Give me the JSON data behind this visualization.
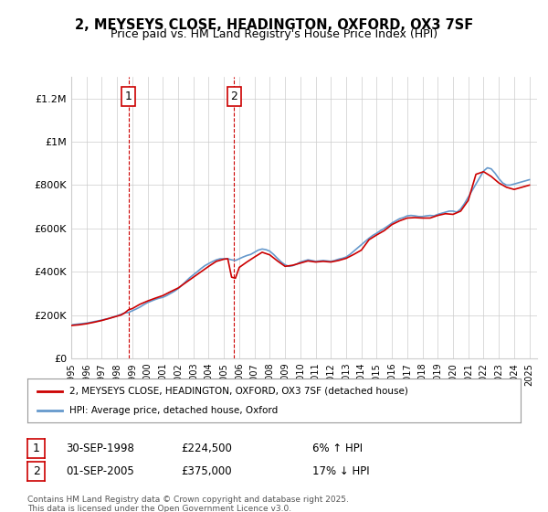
{
  "title_line1": "2, MEYSEYS CLOSE, HEADINGTON, OXFORD, OX3 7SF",
  "title_line2": "Price paid vs. HM Land Registry's House Price Index (HPI)",
  "legend_red": "2, MEYSEYS CLOSE, HEADINGTON, OXFORD, OX3 7SF (detached house)",
  "legend_blue": "HPI: Average price, detached house, Oxford",
  "transaction1_label": "1",
  "transaction1_date": "30-SEP-1998",
  "transaction1_price": "£224,500",
  "transaction1_hpi": "6% ↑ HPI",
  "transaction2_label": "2",
  "transaction2_date": "01-SEP-2005",
  "transaction2_price": "£375,000",
  "transaction2_hpi": "17% ↓ HPI",
  "footnote": "Contains HM Land Registry data © Crown copyright and database right 2025.\nThis data is licensed under the Open Government Licence v3.0.",
  "red_color": "#cc0000",
  "blue_color": "#6699cc",
  "vline_color": "#cc0000",
  "grid_color": "#cccccc",
  "background_color": "#ffffff",
  "ylim": [
    0,
    1300000
  ],
  "yticks": [
    0,
    200000,
    400000,
    600000,
    800000,
    1000000,
    1200000
  ],
  "ytick_labels": [
    "£0",
    "£200K",
    "£400K",
    "£600K",
    "£800K",
    "£1M",
    "£1.2M"
  ],
  "transaction1_x": 1998.75,
  "transaction2_x": 2005.67,
  "hpi_x": [
    1995.0,
    1995.25,
    1995.5,
    1995.75,
    1996.0,
    1996.25,
    1996.5,
    1996.75,
    1997.0,
    1997.25,
    1997.5,
    1997.75,
    1998.0,
    1998.25,
    1998.5,
    1998.75,
    1999.0,
    1999.25,
    1999.5,
    1999.75,
    2000.0,
    2000.25,
    2000.5,
    2000.75,
    2001.0,
    2001.25,
    2001.5,
    2001.75,
    2002.0,
    2002.25,
    2002.5,
    2002.75,
    2003.0,
    2003.25,
    2003.5,
    2003.75,
    2004.0,
    2004.25,
    2004.5,
    2004.75,
    2005.0,
    2005.25,
    2005.5,
    2005.75,
    2006.0,
    2006.25,
    2006.5,
    2006.75,
    2007.0,
    2007.25,
    2007.5,
    2007.75,
    2008.0,
    2008.25,
    2008.5,
    2008.75,
    2009.0,
    2009.25,
    2009.5,
    2009.75,
    2010.0,
    2010.25,
    2010.5,
    2010.75,
    2011.0,
    2011.25,
    2011.5,
    2011.75,
    2012.0,
    2012.25,
    2012.5,
    2012.75,
    2013.0,
    2013.25,
    2013.5,
    2013.75,
    2014.0,
    2014.25,
    2014.5,
    2014.75,
    2015.0,
    2015.25,
    2015.5,
    2015.75,
    2016.0,
    2016.25,
    2016.5,
    2016.75,
    2017.0,
    2017.25,
    2017.5,
    2017.75,
    2018.0,
    2018.25,
    2018.5,
    2018.75,
    2019.0,
    2019.25,
    2019.5,
    2019.75,
    2020.0,
    2020.25,
    2020.5,
    2020.75,
    2021.0,
    2021.25,
    2021.5,
    2021.75,
    2022.0,
    2022.25,
    2022.5,
    2022.75,
    2023.0,
    2023.25,
    2023.5,
    2023.75,
    2024.0,
    2024.25,
    2024.5,
    2024.75,
    2025.0
  ],
  "hpi_y": [
    155000,
    157000,
    159000,
    161000,
    163000,
    166000,
    170000,
    173000,
    177000,
    181000,
    185000,
    191000,
    197000,
    203000,
    210000,
    212000,
    220000,
    228000,
    237000,
    248000,
    258000,
    265000,
    272000,
    278000,
    282000,
    290000,
    300000,
    310000,
    322000,
    338000,
    355000,
    372000,
    386000,
    400000,
    415000,
    428000,
    438000,
    447000,
    455000,
    460000,
    460000,
    460000,
    455000,
    452000,
    460000,
    468000,
    475000,
    480000,
    490000,
    500000,
    505000,
    502000,
    495000,
    480000,
    462000,
    445000,
    432000,
    425000,
    428000,
    435000,
    445000,
    450000,
    455000,
    452000,
    448000,
    450000,
    452000,
    450000,
    448000,
    452000,
    458000,
    462000,
    468000,
    480000,
    495000,
    510000,
    525000,
    540000,
    555000,
    568000,
    578000,
    590000,
    600000,
    612000,
    625000,
    635000,
    645000,
    650000,
    658000,
    660000,
    658000,
    655000,
    655000,
    658000,
    660000,
    658000,
    665000,
    670000,
    675000,
    680000,
    680000,
    675000,
    690000,
    715000,
    745000,
    775000,
    805000,
    835000,
    865000,
    880000,
    875000,
    855000,
    830000,
    810000,
    800000,
    800000,
    805000,
    810000,
    815000,
    820000,
    825000
  ],
  "red_x": [
    1995.0,
    1995.5,
    1996.0,
    1996.5,
    1997.0,
    1997.5,
    1998.0,
    1998.25,
    1998.5,
    1998.75,
    1999.0,
    1999.5,
    2000.0,
    2000.5,
    2001.0,
    2001.5,
    2002.0,
    2002.5,
    2003.0,
    2003.5,
    2004.0,
    2004.5,
    2005.0,
    2005.25,
    2005.5,
    2005.75,
    2006.0,
    2006.5,
    2007.0,
    2007.5,
    2008.0,
    2008.5,
    2009.0,
    2009.5,
    2010.0,
    2010.5,
    2011.0,
    2011.5,
    2012.0,
    2012.5,
    2013.0,
    2013.5,
    2014.0,
    2014.5,
    2015.0,
    2015.5,
    2016.0,
    2016.5,
    2017.0,
    2017.5,
    2018.0,
    2018.5,
    2019.0,
    2019.5,
    2020.0,
    2020.5,
    2021.0,
    2021.5,
    2022.0,
    2022.5,
    2023.0,
    2023.5,
    2024.0,
    2024.5,
    2025.0
  ],
  "red_y": [
    152000,
    155000,
    160000,
    167000,
    175000,
    185000,
    195000,
    200000,
    210000,
    224500,
    230000,
    250000,
    265000,
    278000,
    290000,
    308000,
    325000,
    350000,
    375000,
    400000,
    425000,
    448000,
    458000,
    460000,
    375000,
    370000,
    420000,
    445000,
    468000,
    490000,
    478000,
    450000,
    425000,
    430000,
    440000,
    450000,
    445000,
    448000,
    445000,
    452000,
    462000,
    480000,
    500000,
    548000,
    570000,
    590000,
    618000,
    635000,
    648000,
    650000,
    648000,
    648000,
    660000,
    668000,
    665000,
    680000,
    730000,
    850000,
    862000,
    840000,
    810000,
    790000,
    780000,
    790000,
    800000
  ],
  "xlim": [
    1995,
    2025.5
  ],
  "xticks": [
    1995,
    1996,
    1997,
    1998,
    1999,
    2000,
    2001,
    2002,
    2003,
    2004,
    2005,
    2006,
    2007,
    2008,
    2009,
    2010,
    2011,
    2012,
    2013,
    2014,
    2015,
    2016,
    2017,
    2018,
    2019,
    2020,
    2021,
    2022,
    2023,
    2024,
    2025
  ]
}
